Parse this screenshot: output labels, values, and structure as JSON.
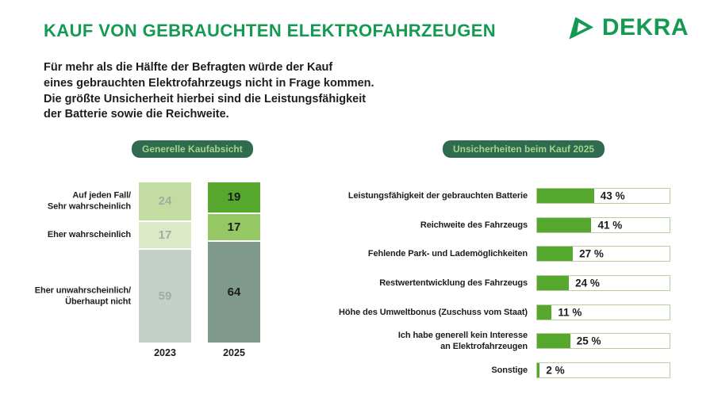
{
  "header": {
    "title": "KAUF VON GEBRAUCHTEN ELEKTROFAHRZEUGEN",
    "intro_lines": [
      "Für mehr als die Hälfte der Befragten würde der Kauf",
      "eines gebrauchten Elektrofahrzeugs nicht in Frage kommen.",
      "Die größte Unsicherheit hierbei sind die Leistungsfähigkeit",
      "der Batterie sowie die Reichweite."
    ],
    "brand": "DEKRA"
  },
  "colors": {
    "brand_green": "#149a52",
    "pill_bg": "#2e6b4f",
    "pill_text": "#a7d28c",
    "vivid_green": "#55a82d",
    "mid_green": "#95c765",
    "gray_green": "#7f9a8c",
    "muted_light_green": "#c3dca2",
    "muted_lighter_green": "#dbe9c6",
    "muted_gray_green": "#c5d0c8",
    "track_border": "#b6cfa3",
    "text_dark": "#1d1d1b",
    "muted_value_text": "#9fae9f"
  },
  "chart_data": [
    {
      "type": "bar",
      "variant": "stacked-column",
      "title": "Generelle Kaufabsicht",
      "categories": [
        "2023",
        "2025"
      ],
      "series": [
        {
          "name": "Auf jeden Fall/ Sehr wahrscheinlich",
          "label_lines": [
            "Auf jeden Fall/",
            "Sehr wahrscheinlich"
          ],
          "values": [
            24,
            19
          ],
          "colors": [
            "#c3dca2",
            "#55a82d"
          ]
        },
        {
          "name": "Eher wahrscheinlich",
          "label_lines": [
            "Eher wahrscheinlich"
          ],
          "values": [
            17,
            17
          ],
          "colors": [
            "#dbe9c6",
            "#95c765"
          ]
        },
        {
          "name": "Eher unwahrscheinlich/ Überhaupt nicht",
          "label_lines": [
            "Eher unwahrscheinlich/",
            "Überhaupt nicht"
          ],
          "values": [
            59,
            64
          ],
          "colors": [
            "#c5d0c8",
            "#7f9a8c"
          ]
        }
      ],
      "value_text_colors": [
        "#9fae9f",
        "#1d1d1b"
      ],
      "ylim": [
        0,
        100
      ],
      "legend": "none",
      "grid": false
    },
    {
      "type": "bar",
      "variant": "horizontal",
      "title": "Unsicherheiten beim Kauf 2025",
      "categories": [
        "Leistungsfähigkeit der gebrauchten Batterie",
        "Reichweite des Fahrzeugs",
        "Fehlende Park- und Lademöglichkeiten",
        "Restwertentwicklung des Fahrzeugs",
        "Höhe des Umweltbonus (Zuschuss vom Staat)",
        "Ich habe generell kein Interesse an Elektrofahrzeugen",
        "Sonstige"
      ],
      "category_lines": [
        [
          "Leistungsfähigkeit der gebrauchten Batterie"
        ],
        [
          "Reichweite des Fahrzeugs"
        ],
        [
          "Fehlende Park- und Lademöglichkeiten"
        ],
        [
          "Restwertentwicklung des Fahrzeugs"
        ],
        [
          "Höhe des Umweltbonus (Zuschuss vom Staat)"
        ],
        [
          "Ich habe generell kein Interesse",
          "an Elektrofahrzeugen"
        ],
        [
          "Sonstige"
        ]
      ],
      "values": [
        43,
        41,
        27,
        24,
        11,
        25,
        2
      ],
      "value_labels": [
        "43 %",
        "41 %",
        "27 %",
        "24 %",
        "11 %",
        "25 %",
        "2 %"
      ],
      "xlim": [
        0,
        100
      ],
      "bar_color": "#55a82d",
      "legend": "none",
      "grid": false
    }
  ]
}
